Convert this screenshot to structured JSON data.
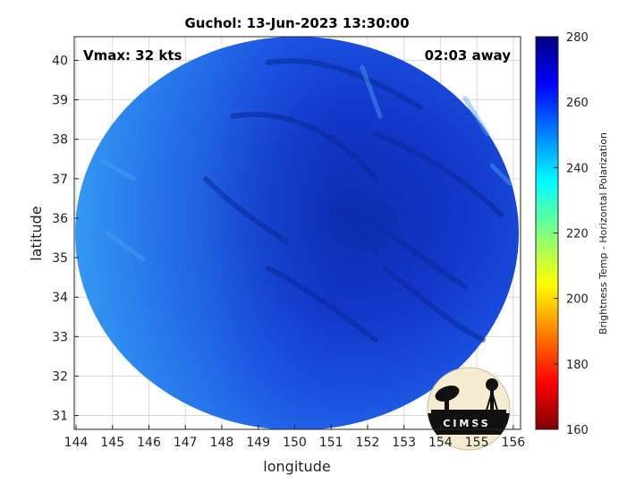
{
  "title": "Guchol: 13-Jun-2023 13:30:00",
  "annotations": {
    "vmax": "Vmax: 32 kts",
    "time_away": "02:03 away"
  },
  "axes": {
    "xlabel": "longitude",
    "ylabel": "latitude",
    "x_ticks": [
      "144",
      "145",
      "146",
      "147",
      "148",
      "149",
      "150",
      "151",
      "152",
      "153",
      "154",
      "155",
      "156"
    ],
    "y_ticks": [
      "31",
      "32",
      "33",
      "34",
      "35",
      "36",
      "37",
      "38",
      "39",
      "40"
    ],
    "x_range": [
      143.95,
      156.2
    ],
    "y_range": [
      30.65,
      40.6
    ],
    "grid": true
  },
  "colorbar": {
    "label": "Brightness Temp - Horizontal Polarization",
    "ticks": [
      "280",
      "260",
      "240",
      "220",
      "200",
      "180",
      "160"
    ],
    "range": [
      160,
      280
    ],
    "colormap": "jet-reversed"
  },
  "swath": {
    "center_lon": 150.1,
    "center_lat": 35.6,
    "dominant_color": "#1a4fe0",
    "cold_core_color": "#0b2fb0",
    "edge_color": "#2a8cf0"
  },
  "logo": {
    "text": "CIMSS"
  },
  "colors": {
    "background": "#ffffff",
    "grid": "#d9d9d9",
    "axis": "#262626"
  }
}
